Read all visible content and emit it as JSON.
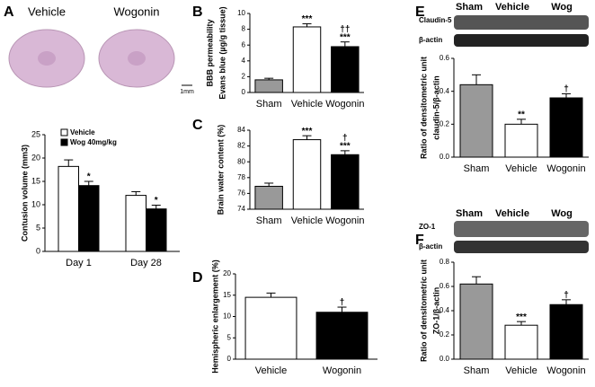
{
  "chart_data": [
    {
      "panel": "A",
      "type": "bar",
      "image_labels": [
        "Vehicle",
        "Wogonin"
      ],
      "scale_label": "1mm",
      "y_label": [
        "Contusion volume (mm3)"
      ],
      "categories": [
        "Day 1",
        "Day 28"
      ],
      "series": [
        {
          "name": "Vehicle",
          "color": "#ffffff",
          "values": [
            18.2,
            12.0
          ],
          "errors": [
            1.4,
            0.8
          ],
          "annotations": [
            null,
            null
          ]
        },
        {
          "name": "Wog 40mg/kg",
          "color": "#000000",
          "values": [
            14.1,
            9.1
          ],
          "errors": [
            0.9,
            0.8
          ],
          "annotations": [
            [
              "*"
            ],
            [
              "*"
            ]
          ]
        }
      ],
      "ylim": [
        0,
        25
      ],
      "yticks": [
        0,
        5,
        10,
        15,
        20,
        25
      ],
      "legend": "upper left"
    },
    {
      "panel": "B",
      "type": "bar",
      "y_label": [
        "BBB permeability",
        "Evans blue (µg/g tissue)"
      ],
      "categories": [
        "Sham",
        "Vehicle",
        "Wogonin"
      ],
      "values": [
        1.6,
        8.3,
        5.8
      ],
      "errors": [
        0.2,
        0.4,
        0.6
      ],
      "colors": [
        "#999999",
        "#ffffff",
        "#000000"
      ],
      "annotations": [
        null,
        [
          "***"
        ],
        [
          "††",
          "***"
        ]
      ],
      "ylim": [
        0,
        10
      ],
      "yticks": [
        0,
        2,
        4,
        6,
        8,
        10
      ]
    },
    {
      "panel": "C",
      "type": "bar",
      "y_label": [
        "Brain water content (%)"
      ],
      "categories": [
        "Sham",
        "Vehicle",
        "Wogonin"
      ],
      "values": [
        76.9,
        82.8,
        80.9
      ],
      "errors": [
        0.4,
        0.5,
        0.5
      ],
      "colors": [
        "#999999",
        "#ffffff",
        "#000000"
      ],
      "annotations": [
        null,
        [
          "***"
        ],
        [
          "†",
          "***"
        ]
      ],
      "ylim": [
        74,
        84
      ],
      "yticks": [
        74,
        76,
        78,
        80,
        82,
        84
      ]
    },
    {
      "panel": "D",
      "type": "bar",
      "y_label": [
        "Hemispheric enlargement (%)"
      ],
      "categories": [
        "Vehicle",
        "Wogonin"
      ],
      "values": [
        14.5,
        11.0
      ],
      "errors": [
        1.0,
        1.2
      ],
      "colors": [
        "#ffffff",
        "#000000"
      ],
      "annotations": [
        null,
        [
          "†"
        ]
      ],
      "ylim": [
        0,
        20
      ],
      "yticks": [
        0,
        5,
        10,
        15,
        20
      ]
    },
    {
      "panel": "E",
      "type": "bar",
      "blot_lanes": [
        "Sham",
        "Vehicle",
        "Wog"
      ],
      "blot_rows": [
        "Claudin-5",
        "β-actin"
      ],
      "y_label": [
        "Ratio of densitometric unit",
        "claudin-5/β-actin"
      ],
      "categories": [
        "Sham",
        "Vehicle",
        "Wogonin"
      ],
      "values": [
        0.44,
        0.2,
        0.36
      ],
      "errors": [
        0.06,
        0.03,
        0.025
      ],
      "colors": [
        "#999999",
        "#ffffff",
        "#000000"
      ],
      "annotations": [
        null,
        [
          "**"
        ],
        [
          "†"
        ]
      ],
      "ylim": [
        0,
        0.6
      ],
      "yticks": [
        {
          "value": 0,
          "label": "0.0"
        },
        0.2,
        0.4,
        0.6
      ]
    },
    {
      "panel": "F",
      "type": "bar",
      "blot_lanes": [
        "Sham",
        "Vehicle",
        "Wog"
      ],
      "blot_rows": [
        "ZO-1",
        "β-actin"
      ],
      "y_label": [
        "Ratio of densitometric unit",
        "ZO-1/β-actin"
      ],
      "categories": [
        "Sham",
        "Vehicle",
        "Wogonin"
      ],
      "values": [
        0.62,
        0.28,
        0.45
      ],
      "errors": [
        0.06,
        0.03,
        0.04
      ],
      "colors": [
        "#999999",
        "#ffffff",
        "#000000"
      ],
      "annotations": [
        null,
        [
          "***"
        ],
        [
          "†"
        ]
      ],
      "ylim": [
        0,
        0.8
      ],
      "yticks": [
        {
          "value": 0,
          "label": "0.0"
        },
        0.2,
        0.4,
        0.6,
        0.8
      ]
    }
  ]
}
